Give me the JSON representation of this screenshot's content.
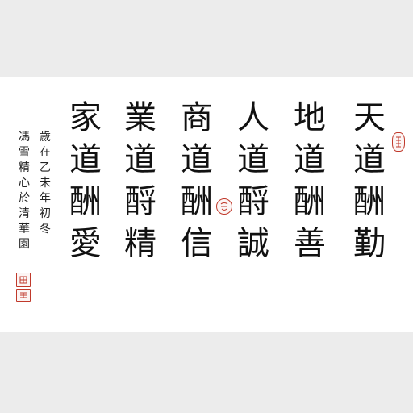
{
  "main_columns": [
    [
      "天",
      "道",
      "酬",
      "勤"
    ],
    [
      "地",
      "道",
      "酬",
      "善"
    ],
    [
      "人",
      "道",
      "酹",
      "誠"
    ],
    [
      "商",
      "道",
      "酬",
      "信"
    ],
    [
      "業",
      "道",
      "酹",
      "精"
    ],
    [
      "家",
      "道",
      "酬",
      "愛"
    ]
  ],
  "inscription": {
    "col1": [
      "歲",
      "在",
      "乙",
      "未",
      "年",
      "初",
      "冬"
    ],
    "col2": [
      "馮",
      "雪",
      "精",
      "心",
      "於",
      "清",
      "華",
      "園"
    ]
  },
  "colors": {
    "ink": "#111111",
    "seal_red": "#c0392b",
    "paper": "#ffffff",
    "background": "#ececec"
  }
}
